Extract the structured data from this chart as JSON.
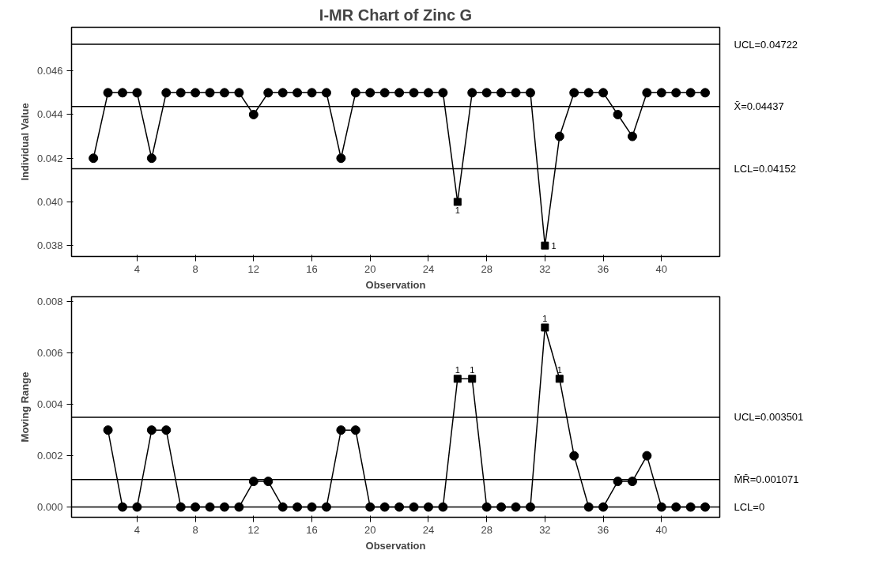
{
  "chart_data": [
    {
      "type": "line",
      "title": "I-MR Chart of Zinc G",
      "xlabel": "Observation",
      "ylabel": "Individual Value",
      "x": [
        1,
        2,
        3,
        4,
        5,
        6,
        7,
        8,
        9,
        10,
        11,
        12,
        13,
        14,
        15,
        16,
        17,
        18,
        19,
        20,
        21,
        22,
        23,
        24,
        25,
        26,
        27,
        28,
        29,
        30,
        31,
        32,
        33,
        34,
        35,
        36,
        37,
        38,
        39,
        40,
        41,
        42,
        43
      ],
      "series": [
        {
          "marker": "none",
          "color": "#000000",
          "values": [
            0.042,
            0.045,
            0.045,
            0.045,
            0.042,
            0.045,
            0.045,
            0.045,
            0.045,
            0.045,
            0.045,
            0.044,
            0.045,
            0.045,
            0.045,
            0.045,
            0.045,
            0.042,
            0.045,
            0.045,
            0.045,
            0.045,
            0.045,
            0.045,
            0.045,
            0.04,
            0.045,
            0.045,
            0.045,
            0.045,
            0.045,
            0.038,
            0.043,
            0.045,
            0.045,
            0.045,
            0.044,
            0.043,
            0.045,
            0.045,
            0.045,
            0.045,
            0.045
          ]
        },
        {
          "type": "scatter",
          "marker": "circle",
          "color": "#000000",
          "values": [
            0.042,
            0.045,
            0.045,
            0.045,
            0.042,
            0.045,
            0.045,
            0.045,
            0.045,
            0.045,
            0.045,
            0.044,
            0.045,
            0.045,
            0.045,
            0.045,
            0.045,
            0.042,
            0.045,
            0.045,
            0.045,
            0.045,
            0.045,
            0.045,
            0.045,
            null,
            0.045,
            0.045,
            0.045,
            0.045,
            0.045,
            null,
            0.043,
            0.045,
            0.045,
            0.045,
            0.044,
            0.043,
            0.045,
            0.045,
            0.045,
            0.045,
            0.045
          ]
        },
        {
          "type": "scatter",
          "marker": "square",
          "color": "#000000",
          "values": [
            null,
            null,
            null,
            null,
            null,
            null,
            null,
            null,
            null,
            null,
            null,
            null,
            null,
            null,
            null,
            null,
            null,
            null,
            null,
            null,
            null,
            null,
            null,
            null,
            null,
            0.04,
            null,
            null,
            null,
            null,
            null,
            0.038,
            null,
            null,
            null,
            null,
            null,
            null,
            null,
            null,
            null,
            null,
            null
          ]
        }
      ],
      "xlim": [
        -0.5,
        44
      ],
      "xticks": [
        4,
        8,
        12,
        16,
        20,
        24,
        28,
        32,
        36,
        40
      ],
      "ylim": [
        0.0375,
        0.048
      ],
      "yticks": [
        0.038,
        {
          "value": 0.04,
          "label": "0.040"
        },
        0.042,
        0.044,
        0.046
      ],
      "ref_lines": [
        {
          "axis": "y",
          "value": 0.04722,
          "label": "UCL=0.04722",
          "color": "#000000"
        },
        {
          "axis": "y",
          "value": 0.04437,
          "label": "X̄=0.04437",
          "color": "#000000"
        },
        {
          "axis": "y",
          "value": 0.04152,
          "label": "LCL=0.04152",
          "color": "#000000"
        }
      ],
      "annotations": [
        {
          "text": "1",
          "x": 26,
          "y": 0.04
        },
        {
          "text": "1",
          "x": 32,
          "y": 0.038
        }
      ],
      "grid": false
    },
    {
      "type": "line",
      "xlabel": "Observation",
      "ylabel": "Moving Range",
      "x": [
        2,
        3,
        4,
        5,
        6,
        7,
        8,
        9,
        10,
        11,
        12,
        13,
        14,
        15,
        16,
        17,
        18,
        19,
        20,
        21,
        22,
        23,
        24,
        25,
        26,
        27,
        28,
        29,
        30,
        31,
        32,
        33,
        34,
        35,
        36,
        37,
        38,
        39,
        40,
        41,
        42,
        43
      ],
      "series": [
        {
          "marker": "none",
          "color": "#000000",
          "values": [
            0.003,
            0,
            0,
            0.003,
            0.003,
            0,
            0,
            0,
            0,
            0,
            0.001,
            0.001,
            0,
            0,
            0,
            0,
            0.003,
            0.003,
            0,
            0,
            0,
            0,
            0,
            0,
            0.005,
            0.005,
            0,
            0,
            0,
            0,
            0.007,
            0.005,
            0.002,
            0,
            0,
            0.001,
            0.001,
            0.002,
            0,
            0,
            0,
            0
          ]
        },
        {
          "type": "scatter",
          "marker": "circle",
          "color": "#000000",
          "values": [
            0.003,
            0,
            0,
            0.003,
            0.003,
            0,
            0,
            0,
            0,
            0,
            0.001,
            0.001,
            0,
            0,
            0,
            0,
            0.003,
            0.003,
            0,
            0,
            0,
            0,
            0,
            0,
            null,
            null,
            0,
            0,
            0,
            0,
            null,
            null,
            0.002,
            0,
            0,
            0.001,
            0.001,
            0.002,
            0,
            0,
            0,
            0
          ]
        },
        {
          "type": "scatter",
          "marker": "square",
          "color": "#000000",
          "values": [
            null,
            null,
            null,
            null,
            null,
            null,
            null,
            null,
            null,
            null,
            null,
            null,
            null,
            null,
            null,
            null,
            null,
            null,
            null,
            null,
            null,
            null,
            null,
            null,
            0.005,
            0.005,
            null,
            null,
            null,
            null,
            0.007,
            0.005,
            null,
            null,
            null,
            null,
            null,
            null,
            null,
            null,
            null,
            null
          ]
        }
      ],
      "xlim": [
        -0.5,
        44
      ],
      "xticks": [
        4,
        8,
        12,
        16,
        20,
        24,
        28,
        32,
        36,
        40
      ],
      "ylim": [
        -0.0004,
        0.0082
      ],
      "yticks": [
        {
          "value": 0,
          "label": "0.000"
        },
        0.002,
        0.004,
        0.006,
        0.008
      ],
      "ref_lines": [
        {
          "axis": "y",
          "value": 0.003501,
          "label": "UCL=0.003501",
          "color": "#000000"
        },
        {
          "axis": "y",
          "value": 0.001071,
          "label": "M̄R̄=0.001071",
          "color": "#000000"
        },
        {
          "axis": "y",
          "value": 0,
          "label": "LCL=0",
          "color": "#000000"
        }
      ],
      "annotations": [
        {
          "text": "1",
          "x": 26,
          "y": 0.005
        },
        {
          "text": "1",
          "x": 27,
          "y": 0.005
        },
        {
          "text": "1",
          "x": 32,
          "y": 0.007
        },
        {
          "text": "1",
          "x": 33,
          "y": 0.005
        }
      ],
      "grid": false
    }
  ]
}
